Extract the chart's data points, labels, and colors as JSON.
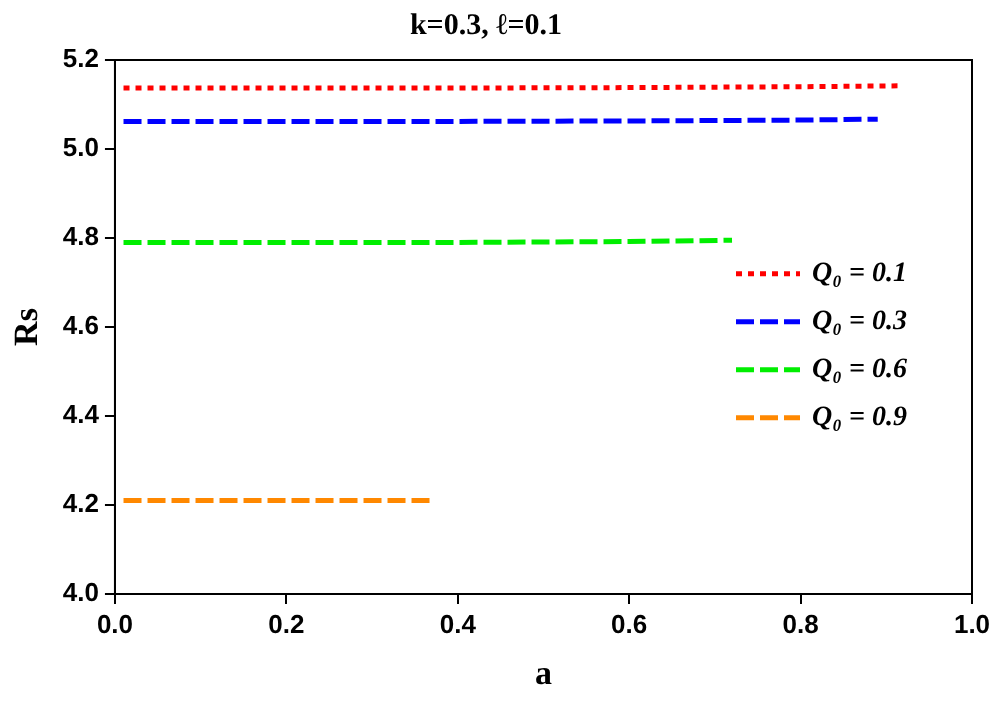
{
  "chart_data": {
    "type": "line",
    "title": "k=0.3, ℓ=0.1",
    "xlabel": "a",
    "ylabel": "Rs",
    "xlim": [
      0,
      1
    ],
    "xticks": [
      {
        "value": 0,
        "label": "0.0"
      },
      0.2,
      0.4,
      0.6,
      0.8,
      {
        "value": 1,
        "label": "1.0"
      }
    ],
    "ylim": [
      4,
      5.2
    ],
    "yticks": [
      {
        "value": 4,
        "label": "4.0"
      },
      4.2,
      4.4,
      4.6,
      4.8,
      {
        "value": 5,
        "label": "5.0"
      },
      5.2
    ],
    "grid": false,
    "legend": "right",
    "marker": "none",
    "series": [
      {
        "name": "Q₀ = 0.1",
        "color": "#ff0000",
        "line_style": "dotted",
        "x": [
          0.01,
          0.2,
          0.4,
          0.6,
          0.8,
          0.92
        ],
        "values": [
          5.137,
          5.137,
          5.137,
          5.138,
          5.14,
          5.142
        ]
      },
      {
        "name": "Q₀ = 0.3",
        "color": "#0000ff",
        "line_style": "dashed",
        "x": [
          0.01,
          0.2,
          0.4,
          0.6,
          0.8,
          0.89
        ],
        "values": [
          5.062,
          5.062,
          5.062,
          5.063,
          5.065,
          5.067
        ]
      },
      {
        "name": "Q₀ = 0.6",
        "color": "#00ee00",
        "line_style": "dashed",
        "x": [
          0.01,
          0.2,
          0.4,
          0.6,
          0.72
        ],
        "values": [
          4.79,
          4.79,
          4.79,
          4.792,
          4.795
        ]
      },
      {
        "name": "Q₀ = 0.9",
        "color": "#ff8800",
        "line_style": "dashed",
        "x": [
          0.01,
          0.2,
          0.37
        ],
        "values": [
          4.21,
          4.21,
          4.21
        ]
      }
    ]
  }
}
